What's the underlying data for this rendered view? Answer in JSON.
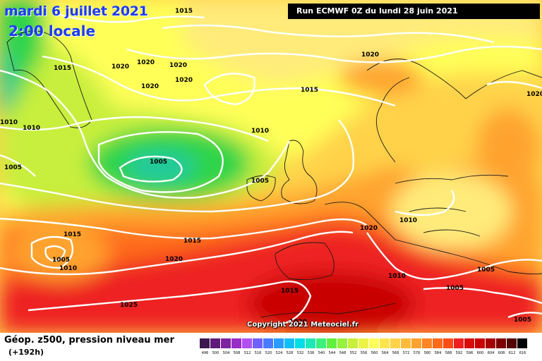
{
  "header": {
    "date_title": "mardi 6 juillet 2021",
    "time_title": "2:00 locale",
    "run_info": "Run ECMWF 0Z du lundi 28 juin 2021"
  },
  "map": {
    "copyright": "Copyright 2021 Meteociel.fr",
    "isobar_labels": [
      "1015",
      "1015",
      "1020",
      "1020",
      "1020",
      "1020",
      "1020",
      "1010",
      "1010",
      "1005",
      "1020",
      "1015",
      "1010",
      "1005",
      "1005",
      "1015",
      "1005",
      "1010",
      "1015",
      "1020",
      "1025",
      "1020",
      "1010",
      "1010",
      "1005",
      "1005",
      "1015",
      "1020",
      "1005",
      "1020"
    ],
    "colors": {
      "green": "#2fd44a",
      "yellow_green": "#c8ef3c",
      "yellow": "#ffff59",
      "light_orange": "#ffd24a",
      "orange": "#ffa32e",
      "red_orange": "#ff6a1a",
      "red": "#ee2020",
      "dark_red": "#c80000",
      "isobar": "#ffffff"
    }
  },
  "footer": {
    "parameter_title": "Géop. z500, pression niveau mer",
    "lead_time": "(+192h)",
    "scale_values": [
      "496",
      "500",
      "504",
      "508",
      "512",
      "516",
      "520",
      "524",
      "528",
      "532",
      "536",
      "540",
      "544",
      "548",
      "552",
      "556",
      "560",
      "564",
      "568",
      "572",
      "576",
      "580",
      "584",
      "588",
      "592",
      "596",
      "600",
      "604",
      "608",
      "612",
      "616"
    ],
    "scale_colors": [
      "#3c1650",
      "#5e1a78",
      "#7e22a0",
      "#9a2cc8",
      "#b050f0",
      "#7060ff",
      "#4a7aff",
      "#2a9cff",
      "#10bff8",
      "#00dce8",
      "#1fe8b8",
      "#3cf07c",
      "#62f040",
      "#96f23a",
      "#c8ef3c",
      "#ecf246",
      "#ffff59",
      "#ffe450",
      "#ffd24a",
      "#ffbc3c",
      "#ffa32e",
      "#ff8424",
      "#ff6a1a",
      "#ff4c14",
      "#ee2020",
      "#d80c0c",
      "#c80000",
      "#a40000",
      "#7c0000",
      "#540000",
      "#000000"
    ]
  }
}
